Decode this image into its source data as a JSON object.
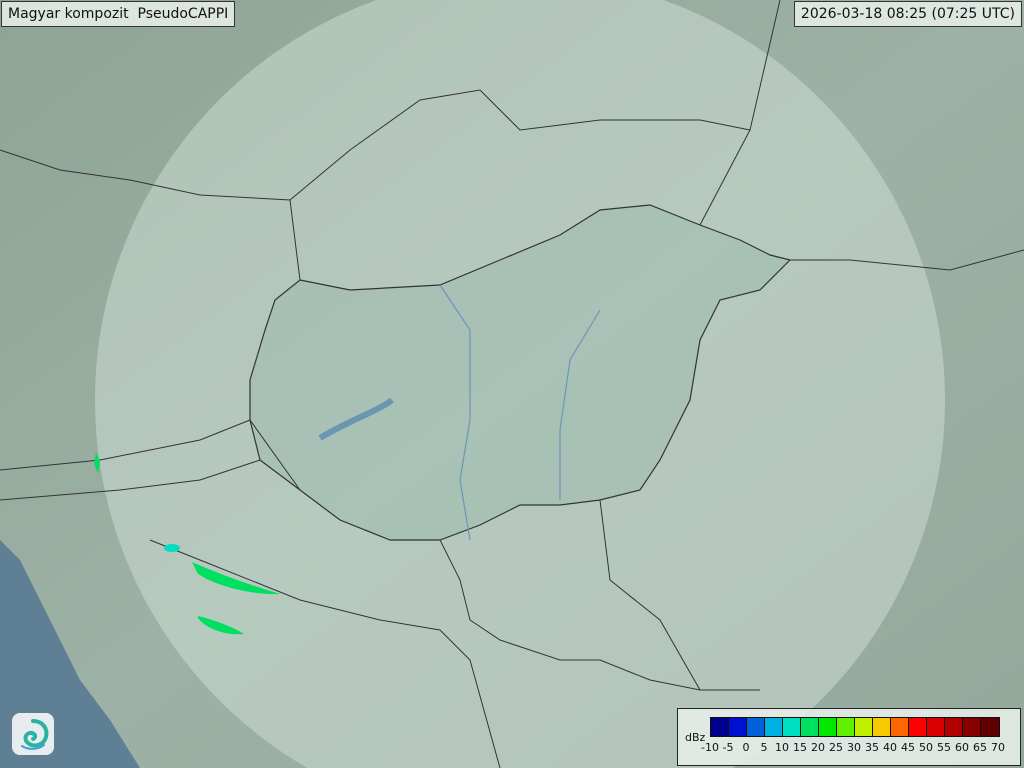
{
  "header": {
    "title": "Magyar kompozit  PseudoCAPPI",
    "timestamp": "2026-03-18 08:25 (07:25 UTC)"
  },
  "legend": {
    "unit": "dBz",
    "ticks": [
      "-10",
      "-5",
      "0",
      "5",
      "10",
      "15",
      "20",
      "25",
      "30",
      "35",
      "40",
      "45",
      "50",
      "55",
      "60",
      "65",
      "70"
    ],
    "colors": [
      "#000090",
      "#0010d0",
      "#0060d8",
      "#00b0e0",
      "#00e0c0",
      "#00e060",
      "#00e800",
      "#60f000",
      "#c0f000",
      "#f8c800",
      "#ff6800",
      "#ff0000",
      "#d80000",
      "#b00000",
      "#880000",
      "#600000"
    ]
  },
  "logo": {
    "icon": "swirl-logo-icon"
  },
  "colors": {
    "land": "#8fa69b",
    "sea": "#5f7f95",
    "radar_coverage": "#c8d8d0",
    "border": "#333333"
  }
}
